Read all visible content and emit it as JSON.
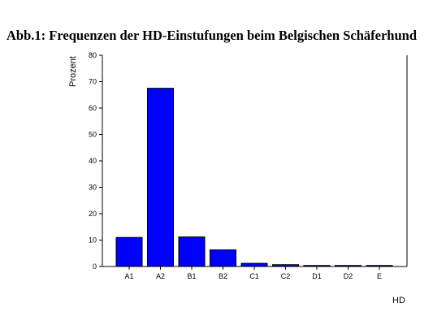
{
  "chart_data": {
    "type": "bar",
    "title": "Abb.1: Frequenzen der HD-Einstufungen beim Belgischen Schäferhund",
    "xlabel": "HD",
    "ylabel": "Prozent",
    "categories": [
      "A1",
      "A2",
      "B1",
      "B2",
      "C1",
      "C2",
      "D1",
      "D2",
      "E"
    ],
    "values": [
      11,
      67.5,
      11.2,
      6.3,
      1.2,
      0.7,
      0.4,
      0.4,
      0.4
    ],
    "ylim": [
      0,
      80
    ],
    "yticks": [
      "0",
      "10",
      "20",
      "30",
      "40",
      "50",
      "60",
      "70",
      "80"
    ],
    "bar_color": "#0000ff",
    "grid": false,
    "legend": "none"
  }
}
